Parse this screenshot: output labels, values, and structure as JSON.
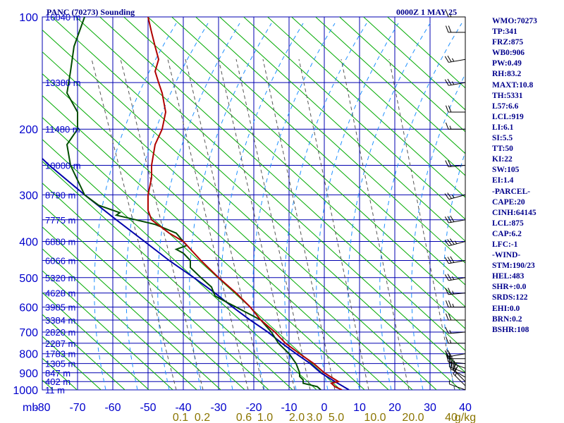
{
  "header": {
    "station": "PANC (70273) Sounding",
    "time": "0000Z  1 MAY 25"
  },
  "colors": {
    "grid": "#0000b0",
    "dry_adiabat": "#00aa00",
    "moist_adiabat": "#1e90ff",
    "mixing_ratio": "#555555",
    "temperature": "#b00000",
    "dewpoint": "#004d00",
    "parcel": "#0000aa",
    "labels": "#0000cc",
    "mix_labels": "#8b7500",
    "wind": "#000000"
  },
  "chart_data": {
    "type": "line",
    "title": "",
    "diagram": "skew-T log-P",
    "xlabel": "",
    "ylabel": "",
    "x_unit_label": "mb",
    "xlim": [
      -80,
      0
    ],
    "ylim": [
      1000,
      100
    ],
    "y_scale": "log",
    "x_ticks": [
      "-80",
      "-70",
      "-60",
      "-50",
      "-40",
      "-30",
      "-20",
      "-10",
      "0",
      "10",
      "20",
      "30",
      "40"
    ],
    "x_tick_values": [
      -80,
      -70,
      -60,
      -50,
      -40,
      -30,
      -20,
      -10,
      0,
      10,
      20,
      30,
      40
    ],
    "p_ticks": [
      "100",
      "200",
      "300",
      "400",
      "500",
      "600",
      "700",
      "800",
      "900",
      "1000"
    ],
    "p_tick_values": [
      100,
      200,
      300,
      400,
      500,
      600,
      700,
      800,
      900,
      1000
    ],
    "height_labels": [
      {
        "p": 100,
        "text": "16040 m"
      },
      {
        "p": 150,
        "text": "13380 m"
      },
      {
        "p": 200,
        "text": "11480 m"
      },
      {
        "p": 250,
        "text": "10000 m"
      },
      {
        "p": 300,
        "text": "8790 m"
      },
      {
        "p": 350,
        "text": "7775 m"
      },
      {
        "p": 400,
        "text": "6880 m"
      },
      {
        "p": 450,
        "text": "6066 m"
      },
      {
        "p": 500,
        "text": "5320 m"
      },
      {
        "p": 550,
        "text": "4628 m"
      },
      {
        "p": 600,
        "text": "3985 m"
      },
      {
        "p": 650,
        "text": "3384 m"
      },
      {
        "p": 700,
        "text": "2820 m"
      },
      {
        "p": 750,
        "text": "2287 m"
      },
      {
        "p": 800,
        "text": "1783 m"
      },
      {
        "p": 850,
        "text": "1305 m"
      },
      {
        "p": 900,
        "text": "847 m"
      },
      {
        "p": 950,
        "text": "402 m"
      },
      {
        "p": 1000,
        "text": "11 m"
      }
    ],
    "mixing_ratio_labels": [
      "0.1",
      "0.2",
      "0.6",
      "1.0",
      "2.0",
      "3.0",
      "5.0",
      "10.0",
      "20.0",
      "40",
      "g/kg"
    ],
    "mixing_ratio_values": [
      0.1,
      0.2,
      0.6,
      1.0,
      2.0,
      3.0,
      5.0,
      10.0,
      20.0,
      40.0
    ],
    "series": [
      {
        "key": "temperature",
        "points": [
          [
            1000,
            5
          ],
          [
            980,
            3
          ],
          [
            960,
            2
          ],
          [
            950,
            4
          ],
          [
            925,
            2
          ],
          [
            900,
            0
          ],
          [
            850,
            -3
          ],
          [
            800,
            -7
          ],
          [
            750,
            -11
          ],
          [
            700,
            -14
          ],
          [
            650,
            -18
          ],
          [
            600,
            -21
          ],
          [
            550,
            -25
          ],
          [
            500,
            -30
          ],
          [
            450,
            -35
          ],
          [
            400,
            -40
          ],
          [
            380,
            -44
          ],
          [
            350,
            -49
          ],
          [
            330,
            -50
          ],
          [
            300,
            -50
          ],
          [
            270,
            -49
          ],
          [
            250,
            -49
          ],
          [
            220,
            -48
          ],
          [
            200,
            -46
          ],
          [
            180,
            -45
          ],
          [
            160,
            -46
          ],
          [
            150,
            -47
          ],
          [
            140,
            -48
          ],
          [
            130,
            -47
          ],
          [
            120,
            -48
          ],
          [
            110,
            -49
          ],
          [
            100,
            -50
          ]
        ]
      },
      {
        "key": "dewpoint",
        "points": [
          [
            1000,
            -1
          ],
          [
            980,
            -2
          ],
          [
            960,
            -6
          ],
          [
            940,
            -6
          ],
          [
            920,
            -7
          ],
          [
            900,
            -7
          ],
          [
            850,
            -8
          ],
          [
            800,
            -10
          ],
          [
            750,
            -13
          ],
          [
            700,
            -15
          ],
          [
            650,
            -18
          ],
          [
            600,
            -25
          ],
          [
            580,
            -28
          ],
          [
            560,
            -31
          ],
          [
            530,
            -32
          ],
          [
            500,
            -35
          ],
          [
            470,
            -38
          ],
          [
            450,
            -38
          ],
          [
            430,
            -40
          ],
          [
            420,
            -42
          ],
          [
            410,
            -39
          ],
          [
            400,
            -40
          ],
          [
            380,
            -42
          ],
          [
            360,
            -48
          ],
          [
            340,
            -59
          ],
          [
            335,
            -58
          ],
          [
            320,
            -64
          ],
          [
            300,
            -68
          ],
          [
            250,
            -72
          ],
          [
            220,
            -73
          ],
          [
            200,
            -70
          ],
          [
            180,
            -70
          ],
          [
            160,
            -73
          ],
          [
            140,
            -72
          ],
          [
            120,
            -71
          ],
          [
            100,
            -68
          ]
        ]
      },
      {
        "key": "parcel",
        "points": [
          [
            1000,
            7
          ],
          [
            950,
            3
          ],
          [
            900,
            -1
          ],
          [
            850,
            -4
          ],
          [
            800,
            -8
          ],
          [
            750,
            -12
          ],
          [
            700,
            -16
          ],
          [
            650,
            -21
          ],
          [
            600,
            -26
          ],
          [
            550,
            -31
          ],
          [
            500,
            -37
          ],
          [
            450,
            -44
          ],
          [
            400,
            -51
          ],
          [
            350,
            -59
          ],
          [
            300,
            -68
          ],
          [
            250,
            -78
          ],
          [
            230,
            -82
          ]
        ]
      }
    ],
    "winds": [
      {
        "p": 1000,
        "dir": 290,
        "spd": 5
      },
      {
        "p": 975,
        "dir": 315,
        "spd": 15
      },
      {
        "p": 950,
        "dir": 315,
        "spd": 20
      },
      {
        "p": 925,
        "dir": 300,
        "spd": 20
      },
      {
        "p": 900,
        "dir": 290,
        "spd": 25
      },
      {
        "p": 875,
        "dir": 290,
        "spd": 25
      },
      {
        "p": 850,
        "dir": 275,
        "spd": 25
      },
      {
        "p": 825,
        "dir": 270,
        "spd": 20
      },
      {
        "p": 800,
        "dir": 260,
        "spd": 20
      },
      {
        "p": 750,
        "dir": 270,
        "spd": 15
      },
      {
        "p": 700,
        "dir": 265,
        "spd": 15
      },
      {
        "p": 650,
        "dir": 270,
        "spd": 20
      },
      {
        "p": 600,
        "dir": 270,
        "spd": 25
      },
      {
        "p": 550,
        "dir": 265,
        "spd": 25
      },
      {
        "p": 500,
        "dir": 260,
        "spd": 25
      },
      {
        "p": 450,
        "dir": 260,
        "spd": 30
      },
      {
        "p": 400,
        "dir": 255,
        "spd": 35
      },
      {
        "p": 350,
        "dir": 260,
        "spd": 30
      },
      {
        "p": 300,
        "dir": 255,
        "spd": 25
      },
      {
        "p": 250,
        "dir": 265,
        "spd": 20
      },
      {
        "p": 200,
        "dir": 270,
        "spd": 15
      },
      {
        "p": 180,
        "dir": 270,
        "spd": 20
      },
      {
        "p": 150,
        "dir": 260,
        "spd": 25
      },
      {
        "p": 130,
        "dir": 260,
        "spd": 25
      },
      {
        "p": 110,
        "dir": 270,
        "spd": 20
      },
      {
        "p": 100,
        "dir": 270,
        "spd": 15
      }
    ]
  },
  "indices": [
    "WMO:70273",
    "TP:341",
    "FRZ:875",
    "WB0:906",
    "PW:0.49",
    "RH:83.2",
    "MAXT:10.8",
    "TH:5331",
    "L57:6.6",
    "LCL:919",
    "LI:6.1",
    "SI:5.5",
    "TT:50",
    "KI:22",
    "SW:105",
    "EI:1.4",
    "-PARCEL-",
    "CAPE:20",
    "CINH:64145",
    "LCL:875",
    "CAP:6.2",
    "LFC:-1",
    "-WIND-",
    "STM:190/23",
    "HEL:483",
    "SHR+:0.0",
    "SRDS:122",
    "EHI:0.0",
    "BRN:0.2",
    "BSHR:108"
  ]
}
